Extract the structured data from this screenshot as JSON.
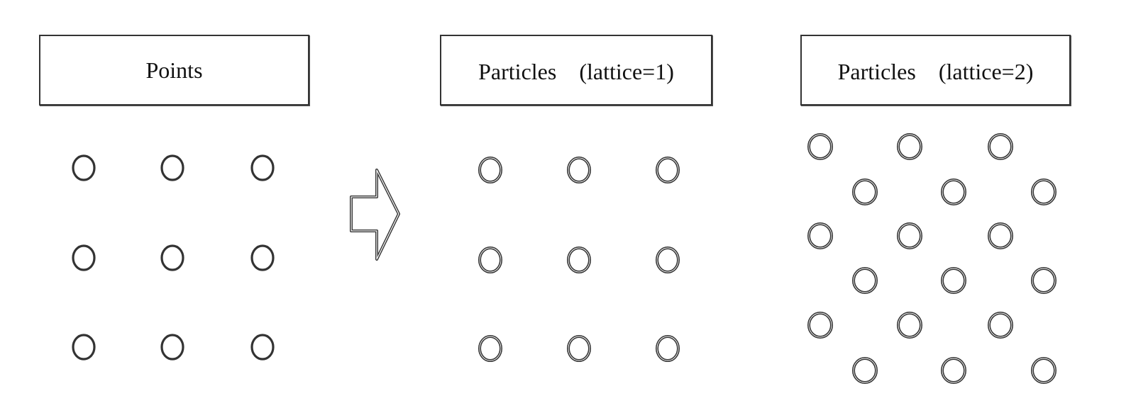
{
  "labels": {
    "points": "Points",
    "lattice1": "Particles　(lattice=1)",
    "lattice2": "Particles　(lattice=2)"
  },
  "style": {
    "stroke": "#333333",
    "background": "#ffffff"
  },
  "groups": {
    "points": {
      "rows": 3,
      "cols": 3
    },
    "lattice1": {
      "rows": 3,
      "cols": 3
    },
    "lattice2": {
      "rows": 6,
      "cols": 3,
      "pattern": "staggered"
    }
  }
}
